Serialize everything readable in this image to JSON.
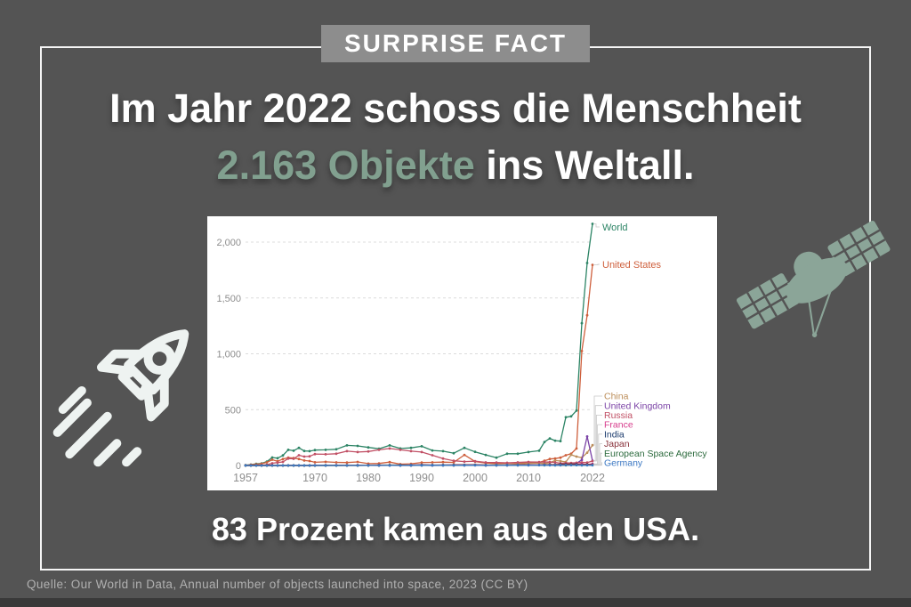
{
  "badge": {
    "label": "SURPRISE FACT"
  },
  "headline": {
    "line1": "Im Jahr 2022 schoss die Menschheit",
    "highlight": "2.163 Objekte",
    "rest": " ins Weltall."
  },
  "subheadline": "83 Prozent kamen aus den USA.",
  "source_line": "Quelle: Our World in Data, Annual number of objects launched into space, 2023 (CC BY)",
  "colors": {
    "background": "#545454",
    "frame": "#f5f5f5",
    "badge_bg": "#8d8d8d",
    "highlight_green": "#81a08f",
    "rocket_icon": "#eef3f1",
    "satellite_icon": "#8ba598",
    "footer_text": "#b0b0b0",
    "bottom_strip": "#393939"
  },
  "icons": {
    "rocket": "rocket-icon",
    "satellite": "satellite-icon"
  },
  "chart_data": {
    "type": "line",
    "title": "",
    "xlabel": "",
    "ylabel": "",
    "xlim": [
      1957,
      2022
    ],
    "ylim": [
      0,
      2200
    ],
    "grid": "horizontal-dashed",
    "legend_position": "right-edge-entity-labels",
    "xticks": [
      1957,
      1970,
      1980,
      1990,
      2000,
      2010,
      2022
    ],
    "yticks": [
      0,
      500,
      1000,
      1500,
      2000
    ],
    "ytick_labels": [
      "0",
      "500",
      "1,000",
      "1,500",
      "2,000"
    ],
    "x": [
      1957,
      1958,
      1959,
      1960,
      1961,
      1962,
      1963,
      1964,
      1965,
      1966,
      1967,
      1968,
      1969,
      1970,
      1972,
      1974,
      1976,
      1978,
      1980,
      1982,
      1984,
      1986,
      1988,
      1990,
      1992,
      1994,
      1996,
      1998,
      2000,
      2002,
      2004,
      2006,
      2008,
      2010,
      2012,
      2013,
      2014,
      2015,
      2016,
      2017,
      2018,
      2019,
      2020,
      2021,
      2022
    ],
    "series": [
      {
        "name": "World",
        "color": "#2c8465",
        "values": [
          3,
          8,
          14,
          19,
          35,
          72,
          65,
          90,
          140,
          132,
          158,
          130,
          128,
          138,
          140,
          145,
          180,
          175,
          162,
          150,
          180,
          152,
          158,
          172,
          135,
          128,
          110,
          158,
          122,
          95,
          70,
          105,
          105,
          120,
          132,
          210,
          242,
          222,
          218,
          432,
          440,
          492,
          1274,
          1813,
          2163
        ]
      },
      {
        "name": "United States",
        "color": "#ce5f3c",
        "values": [
          1,
          7,
          11,
          16,
          28,
          52,
          38,
          57,
          70,
          66,
          58,
          45,
          40,
          29,
          33,
          28,
          26,
          32,
          17,
          18,
          30,
          12,
          15,
          27,
          28,
          30,
          28,
          95,
          35,
          22,
          18,
          22,
          22,
          26,
          28,
          42,
          58,
          62,
          70,
          92,
          105,
          152,
          1025,
          1345,
          1796
        ]
      },
      {
        "name": "China",
        "color": "#bc8e5a",
        "values": [
          0,
          0,
          0,
          0,
          0,
          0,
          0,
          0,
          0,
          0,
          0,
          0,
          0,
          1,
          1,
          1,
          2,
          2,
          2,
          2,
          3,
          2,
          3,
          5,
          3,
          4,
          4,
          5,
          6,
          5,
          8,
          8,
          12,
          20,
          22,
          18,
          25,
          45,
          40,
          32,
          96,
          80,
          70,
          115,
          182
        ]
      },
      {
        "name": "United Kingdom",
        "color": "#7b43a6",
        "values": [
          0,
          0,
          0,
          0,
          0,
          1,
          0,
          1,
          0,
          0,
          1,
          0,
          0,
          0,
          0,
          1,
          0,
          0,
          1,
          0,
          1,
          0,
          0,
          2,
          0,
          1,
          1,
          1,
          2,
          0,
          1,
          1,
          2,
          2,
          3,
          3,
          4,
          3,
          2,
          12,
          10,
          18,
          50,
          260,
          42
        ]
      },
      {
        "name": "Russia",
        "color": "#c15065",
        "values": [
          2,
          1,
          3,
          3,
          7,
          20,
          26,
          32,
          62,
          60,
          92,
          80,
          82,
          102,
          100,
          105,
          128,
          120,
          125,
          140,
          152,
          140,
          128,
          120,
          92,
          62,
          42,
          35,
          38,
          28,
          26,
          24,
          28,
          32,
          30,
          32,
          30,
          28,
          20,
          22,
          22,
          25,
          28,
          26,
          40
        ]
      },
      {
        "name": "France",
        "color": "#d73c8c",
        "values": [
          0,
          0,
          0,
          0,
          0,
          0,
          0,
          0,
          1,
          1,
          0,
          0,
          1,
          2,
          1,
          2,
          1,
          2,
          2,
          2,
          3,
          2,
          2,
          5,
          2,
          3,
          2,
          5,
          5,
          2,
          3,
          3,
          4,
          6,
          5,
          4,
          6,
          4,
          6,
          8,
          6,
          10,
          14,
          8,
          15
        ]
      },
      {
        "name": "India",
        "color": "#1d3d6e",
        "values": [
          0,
          0,
          0,
          0,
          0,
          0,
          0,
          0,
          0,
          0,
          0,
          0,
          0,
          0,
          0,
          0,
          1,
          1,
          1,
          1,
          1,
          1,
          1,
          1,
          2,
          2,
          2,
          2,
          3,
          2,
          2,
          3,
          4,
          4,
          4,
          5,
          6,
          6,
          10,
          12,
          12,
          10,
          6,
          8,
          8
        ]
      },
      {
        "name": "Japan",
        "color": "#883039",
        "values": [
          0,
          0,
          0,
          0,
          0,
          0,
          0,
          0,
          0,
          0,
          0,
          0,
          0,
          1,
          2,
          2,
          2,
          3,
          3,
          4,
          4,
          5,
          4,
          7,
          4,
          5,
          6,
          6,
          7,
          4,
          3,
          5,
          4,
          6,
          5,
          6,
          8,
          8,
          8,
          10,
          12,
          8,
          8,
          10,
          6
        ]
      },
      {
        "name": "European Space Agency",
        "color": "#2d6b3e",
        "values": [
          0,
          0,
          0,
          0,
          0,
          0,
          0,
          0,
          0,
          0,
          0,
          0,
          0,
          0,
          0,
          0,
          0,
          0,
          1,
          1,
          2,
          2,
          2,
          2,
          2,
          2,
          2,
          3,
          3,
          2,
          2,
          2,
          2,
          3,
          3,
          2,
          3,
          2,
          3,
          2,
          4,
          3,
          2,
          3,
          3
        ]
      },
      {
        "name": "Germany",
        "color": "#3c78c3",
        "values": [
          0,
          0,
          0,
          0,
          0,
          0,
          0,
          0,
          0,
          0,
          0,
          0,
          0,
          1,
          1,
          1,
          1,
          1,
          1,
          1,
          1,
          1,
          2,
          2,
          2,
          2,
          2,
          2,
          2,
          2,
          2,
          2,
          2,
          2,
          3,
          3,
          2,
          2,
          3,
          4,
          3,
          3,
          2,
          2,
          2
        ]
      }
    ]
  }
}
